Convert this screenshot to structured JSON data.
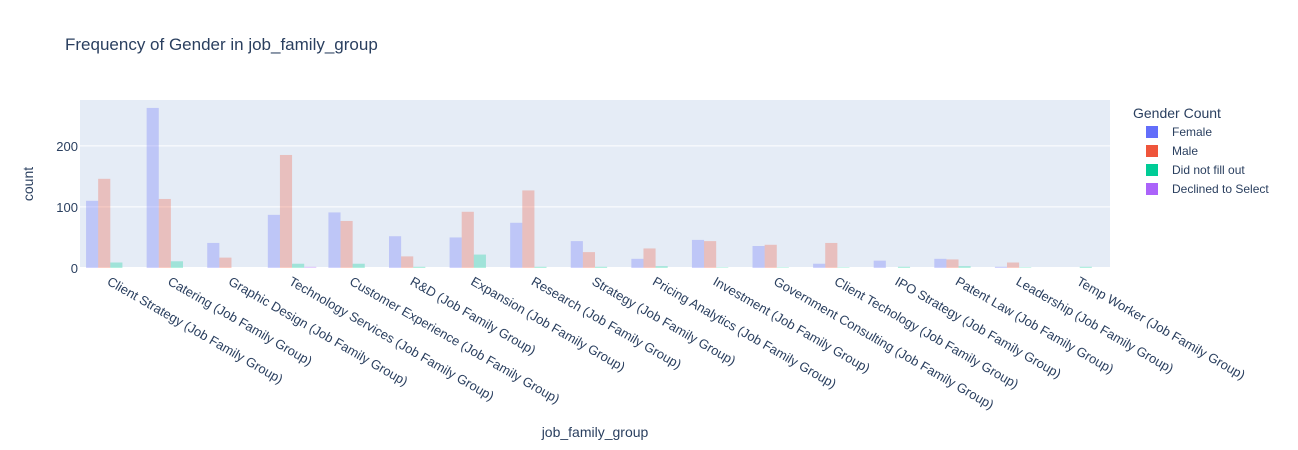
{
  "chart_data": {
    "type": "bar",
    "title": "Frequency of Gender in job_family_group",
    "xlabel": "job_family_group",
    "ylabel": "count",
    "ylim": [
      0,
      275
    ],
    "yticks": [
      0,
      100,
      200
    ],
    "grid": true,
    "legend_title": "Gender Count",
    "legend_position": "right",
    "categories": [
      "Client Strategy (Job Family Group)",
      "Catering (Job Family Group)",
      "Graphic Design (Job Family Group)",
      "Technology Services (Job Family Group)",
      "Customer Experience (Job Family Group)",
      "R&D (Job Family Group)",
      "Expansion (Job Family Group)",
      "Research (Job Family Group)",
      "Strategy (Job Family Group)",
      "Pricing Analytics (Job Family Group)",
      "Investment (Job Family Group)",
      "Government Consulting (Job Family Group)",
      "Client Techology (Job Family Group)",
      "IPO Strategy (Job Family Group)",
      "Patent Law (Job Family Group)",
      "Leadership (Job Family Group)",
      "Temp Worker (Job Family Group)"
    ],
    "series": [
      {
        "name": "Female",
        "color": "#636efa",
        "values": [
          110,
          262,
          41,
          87,
          91,
          52,
          50,
          74,
          44,
          15,
          46,
          36,
          7,
          12,
          15,
          2,
          0
        ]
      },
      {
        "name": "Male",
        "color": "#ef553b",
        "values": [
          146,
          113,
          17,
          185,
          77,
          19,
          92,
          127,
          26,
          32,
          44,
          38,
          41,
          0,
          14,
          9,
          0
        ]
      },
      {
        "name": "Did not fill out",
        "color": "#00cc96",
        "values": [
          9,
          11,
          0,
          7,
          7,
          2,
          22,
          2,
          2,
          3,
          1,
          1,
          1,
          2,
          3,
          1,
          2
        ]
      },
      {
        "name": "Declined to Select",
        "color": "#ab63fa",
        "values": [
          0,
          0,
          0,
          2,
          0,
          0,
          0,
          0,
          0,
          0,
          0,
          0,
          0,
          0,
          0,
          0,
          0
        ]
      }
    ]
  }
}
